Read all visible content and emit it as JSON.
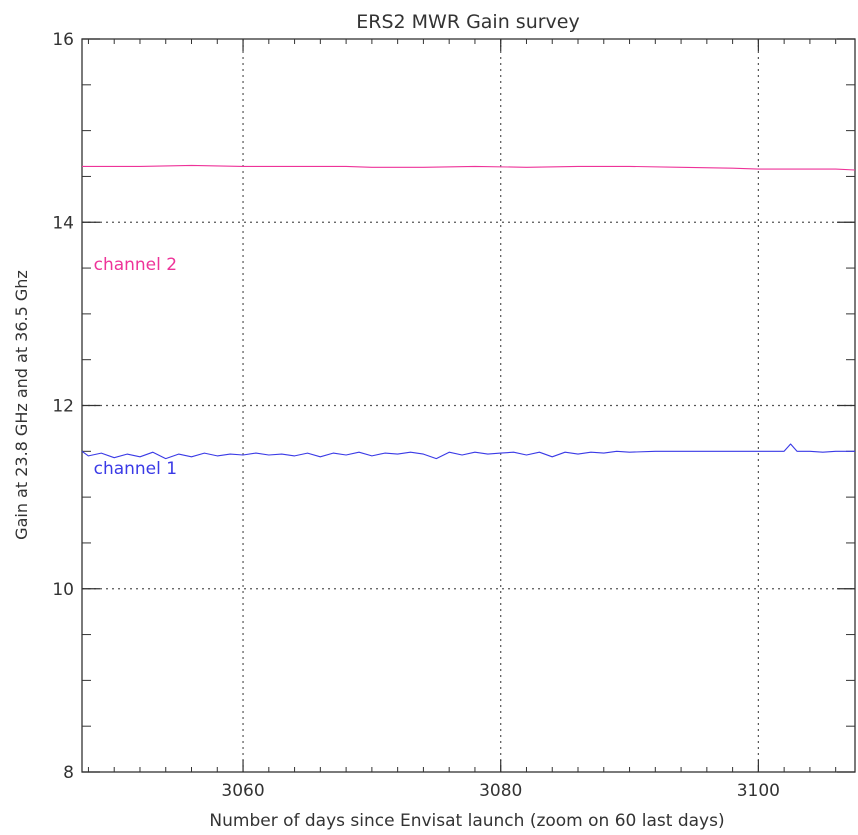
{
  "chart_data": {
    "type": "line",
    "title": "ERS2   MWR     Gain survey",
    "xlabel": "Number of days since Envisat launch (zoom on 60 last days)",
    "ylabel": "Gain at 23.8 GHz and at 36.5 Ghz",
    "xlim": [
      3047.5,
      3107.5
    ],
    "ylim": [
      8,
      16
    ],
    "x_ticks": [
      3060,
      3080,
      3100
    ],
    "y_ticks": [
      8,
      10,
      12,
      14,
      16
    ],
    "x_minor_step": 2,
    "y_minor_step": 0.5,
    "grid": true,
    "colors": {
      "channel_1": "#3a3ae6",
      "channel_2": "#ee3399",
      "axis": "#333333",
      "grid": "#555555"
    },
    "annotations": [
      {
        "text": "channel 2",
        "x": 3048.4,
        "y": 13.48,
        "color": "#ee3399"
      },
      {
        "text": "channel 1",
        "x": 3048.4,
        "y": 11.25,
        "color": "#3a3ae6"
      }
    ],
    "series": [
      {
        "key": "channel_2",
        "x": [
          3047.5,
          3052,
          3056,
          3060,
          3064,
          3068,
          3070,
          3074,
          3078,
          3082,
          3086,
          3090,
          3094,
          3098,
          3100,
          3104,
          3106,
          3107.5
        ],
        "y": [
          14.61,
          14.61,
          14.62,
          14.61,
          14.61,
          14.61,
          14.6,
          14.6,
          14.61,
          14.6,
          14.61,
          14.61,
          14.6,
          14.59,
          14.58,
          14.58,
          14.58,
          14.57
        ]
      },
      {
        "key": "channel_1",
        "x": [
          3047.5,
          3048,
          3049,
          3050,
          3051,
          3052,
          3053,
          3054,
          3055,
          3056,
          3057,
          3058,
          3059,
          3060,
          3061,
          3062,
          3063,
          3064,
          3065,
          3066,
          3067,
          3068,
          3069,
          3070,
          3071,
          3072,
          3073,
          3074,
          3075,
          3076,
          3077,
          3078,
          3079,
          3080,
          3081,
          3082,
          3083,
          3084,
          3085,
          3086,
          3087,
          3088,
          3089,
          3090,
          3092,
          3094,
          3096,
          3098,
          3100,
          3101,
          3102,
          3102.5,
          3103,
          3104,
          3105,
          3106,
          3107,
          3107.5
        ],
        "y": [
          11.5,
          11.45,
          11.48,
          11.43,
          11.47,
          11.44,
          11.49,
          11.42,
          11.47,
          11.44,
          11.48,
          11.45,
          11.47,
          11.46,
          11.48,
          11.46,
          11.47,
          11.45,
          11.48,
          11.44,
          11.48,
          11.46,
          11.49,
          11.45,
          11.48,
          11.47,
          11.49,
          11.47,
          11.42,
          11.49,
          11.46,
          11.49,
          11.47,
          11.48,
          11.49,
          11.46,
          11.49,
          11.44,
          11.49,
          11.47,
          11.49,
          11.48,
          11.5,
          11.49,
          11.5,
          11.5,
          11.5,
          11.5,
          11.5,
          11.5,
          11.5,
          11.58,
          11.5,
          11.5,
          11.49,
          11.5,
          11.5,
          11.5
        ]
      }
    ]
  }
}
